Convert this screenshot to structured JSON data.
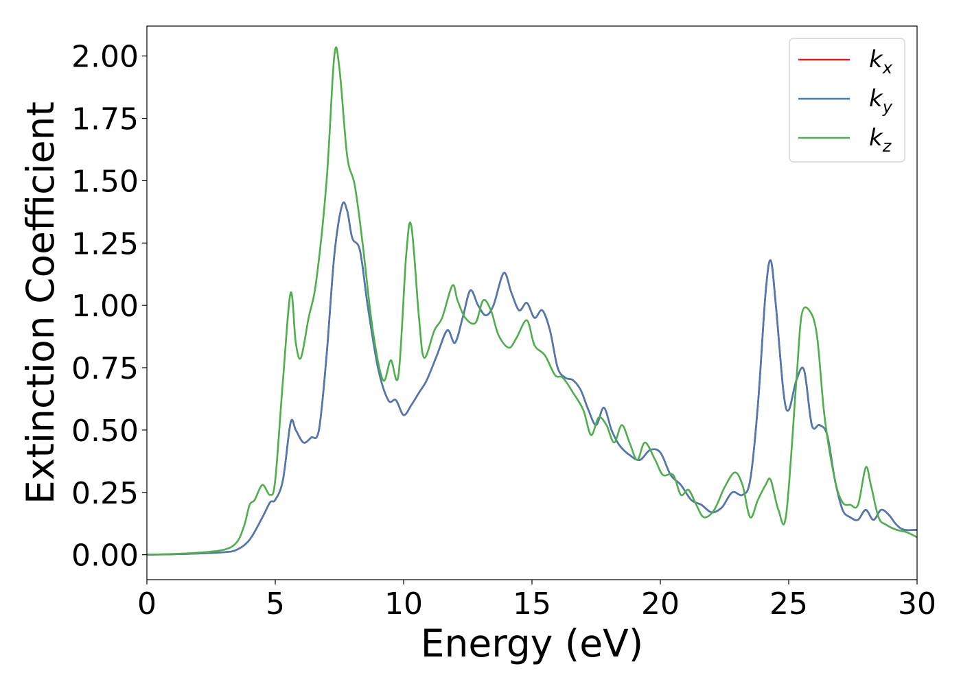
{
  "chart_data": {
    "type": "line",
    "xlabel": "Energy (eV)",
    "ylabel": "Extinction Coefficient",
    "xlim": [
      0,
      30
    ],
    "ylim": [
      -0.1,
      2.12
    ],
    "xticks": [
      "0",
      "5",
      "10",
      "15",
      "20",
      "25",
      "30"
    ],
    "yticks": [
      "0.00",
      "0.25",
      "0.50",
      "0.75",
      "1.00",
      "1.25",
      "1.50",
      "1.75",
      "2.00"
    ],
    "grid": false,
    "legend_position": "top-right",
    "series": [
      {
        "name": "k",
        "subscript": "x",
        "color": "#e41a1c",
        "x": [
          0,
          1,
          2,
          3,
          3.5,
          4,
          4.5,
          4.8,
          5,
          5.3,
          5.6,
          5.8,
          6.1,
          6.4,
          6.7,
          7,
          7.3,
          7.6,
          7.8,
          8,
          8.3,
          8.6,
          9,
          9.4,
          9.7,
          10,
          10.3,
          10.6,
          10.9,
          11.3,
          11.7,
          12,
          12.3,
          12.6,
          12.9,
          13.2,
          13.5,
          13.9,
          14.2,
          14.5,
          14.8,
          15.1,
          15.4,
          15.7,
          16,
          16.3,
          16.6,
          16.9,
          17.2,
          17.5,
          17.8,
          18.1,
          18.4,
          18.8,
          19.2,
          19.6,
          20,
          20.4,
          20.8,
          21.2,
          21.6,
          22,
          22.4,
          22.8,
          23.2,
          23.5,
          23.8,
          24.1,
          24.3,
          24.5,
          24.8,
          25,
          25.3,
          25.6,
          25.9,
          26.2,
          26.5,
          26.8,
          27.1,
          27.4,
          27.7,
          28,
          28.3,
          28.6,
          28.9,
          29.2,
          29.5,
          30
        ],
        "y": [
          0,
          0.002,
          0.005,
          0.01,
          0.02,
          0.06,
          0.15,
          0.21,
          0.22,
          0.3,
          0.53,
          0.5,
          0.45,
          0.47,
          0.5,
          0.8,
          1.2,
          1.4,
          1.38,
          1.27,
          1.22,
          1.0,
          0.75,
          0.62,
          0.62,
          0.56,
          0.6,
          0.65,
          0.7,
          0.8,
          0.9,
          0.85,
          0.95,
          1.06,
          1.0,
          0.96,
          1.0,
          1.13,
          1.05,
          0.98,
          1.01,
          0.95,
          0.98,
          0.9,
          0.75,
          0.71,
          0.7,
          0.66,
          0.58,
          0.52,
          0.59,
          0.5,
          0.44,
          0.4,
          0.38,
          0.42,
          0.41,
          0.32,
          0.28,
          0.22,
          0.2,
          0.17,
          0.19,
          0.25,
          0.24,
          0.3,
          0.6,
          1.05,
          1.18,
          1.0,
          0.65,
          0.58,
          0.7,
          0.74,
          0.52,
          0.52,
          0.48,
          0.3,
          0.18,
          0.15,
          0.14,
          0.18,
          0.14,
          0.18,
          0.16,
          0.12,
          0.1,
          0.1
        ]
      },
      {
        "name": "k",
        "subscript": "y",
        "color": "#4a7ab5",
        "x": [
          0,
          1,
          2,
          3,
          3.5,
          4,
          4.5,
          4.8,
          5,
          5.3,
          5.6,
          5.8,
          6.1,
          6.4,
          6.7,
          7,
          7.3,
          7.6,
          7.8,
          8,
          8.3,
          8.6,
          9,
          9.4,
          9.7,
          10,
          10.3,
          10.6,
          10.9,
          11.3,
          11.7,
          12,
          12.3,
          12.6,
          12.9,
          13.2,
          13.5,
          13.9,
          14.2,
          14.5,
          14.8,
          15.1,
          15.4,
          15.7,
          16,
          16.3,
          16.6,
          16.9,
          17.2,
          17.5,
          17.8,
          18.1,
          18.4,
          18.8,
          19.2,
          19.6,
          20,
          20.4,
          20.8,
          21.2,
          21.6,
          22,
          22.4,
          22.8,
          23.2,
          23.5,
          23.8,
          24.1,
          24.3,
          24.5,
          24.8,
          25,
          25.3,
          25.6,
          25.9,
          26.2,
          26.5,
          26.8,
          27.1,
          27.4,
          27.7,
          28,
          28.3,
          28.6,
          28.9,
          29.2,
          29.5,
          30
        ],
        "y": [
          0,
          0.002,
          0.005,
          0.01,
          0.02,
          0.06,
          0.15,
          0.21,
          0.22,
          0.3,
          0.53,
          0.5,
          0.45,
          0.47,
          0.5,
          0.8,
          1.2,
          1.4,
          1.38,
          1.27,
          1.22,
          1.0,
          0.75,
          0.62,
          0.62,
          0.56,
          0.6,
          0.65,
          0.7,
          0.8,
          0.9,
          0.85,
          0.95,
          1.06,
          1.0,
          0.96,
          1.0,
          1.13,
          1.05,
          0.98,
          1.01,
          0.95,
          0.98,
          0.9,
          0.75,
          0.71,
          0.7,
          0.66,
          0.58,
          0.52,
          0.59,
          0.5,
          0.44,
          0.4,
          0.38,
          0.42,
          0.41,
          0.32,
          0.28,
          0.22,
          0.2,
          0.17,
          0.19,
          0.25,
          0.24,
          0.3,
          0.6,
          1.05,
          1.18,
          1.0,
          0.65,
          0.58,
          0.7,
          0.74,
          0.52,
          0.52,
          0.48,
          0.3,
          0.18,
          0.15,
          0.14,
          0.18,
          0.14,
          0.18,
          0.16,
          0.12,
          0.1,
          0.1
        ]
      },
      {
        "name": "k",
        "subscript": "z",
        "color": "#4daf4a",
        "x": [
          0,
          1,
          2,
          3,
          3.5,
          3.8,
          4,
          4.2,
          4.5,
          4.8,
          5,
          5.3,
          5.6,
          5.8,
          6,
          6.3,
          6.6,
          7,
          7.3,
          7.5,
          7.8,
          8.1,
          8.4,
          8.8,
          9.2,
          9.5,
          9.8,
          10.1,
          10.3,
          10.6,
          10.8,
          11.2,
          11.5,
          11.9,
          12.1,
          12.4,
          12.8,
          13.1,
          13.4,
          13.7,
          14.1,
          14.4,
          14.8,
          15.1,
          15.5,
          15.9,
          16.2,
          16.6,
          17,
          17.3,
          17.6,
          17.9,
          18.2,
          18.5,
          18.8,
          19.1,
          19.4,
          19.8,
          20.1,
          20.5,
          20.8,
          21.1,
          21.4,
          21.7,
          22.1,
          22.5,
          22.9,
          23.2,
          23.5,
          23.8,
          24.1,
          24.3,
          24.6,
          24.9,
          25.3,
          25.5,
          25.8,
          26.1,
          26.4,
          26.8,
          27.1,
          27.4,
          27.7,
          28,
          28.2,
          28.5,
          28.8,
          29.2,
          29.6,
          30
        ],
        "y": [
          0,
          0.003,
          0.008,
          0.02,
          0.05,
          0.12,
          0.2,
          0.22,
          0.28,
          0.24,
          0.3,
          0.7,
          1.05,
          0.85,
          0.79,
          0.95,
          1.1,
          1.5,
          2.0,
          1.95,
          1.6,
          1.48,
          1.25,
          0.9,
          0.7,
          0.78,
          0.72,
          1.2,
          1.32,
          0.95,
          0.79,
          0.9,
          0.95,
          1.08,
          1.02,
          0.95,
          0.93,
          1.02,
          0.98,
          0.88,
          0.83,
          0.87,
          0.94,
          0.84,
          0.8,
          0.72,
          0.71,
          0.65,
          0.58,
          0.48,
          0.55,
          0.52,
          0.45,
          0.52,
          0.45,
          0.38,
          0.45,
          0.38,
          0.32,
          0.32,
          0.24,
          0.26,
          0.2,
          0.15,
          0.18,
          0.27,
          0.33,
          0.28,
          0.15,
          0.22,
          0.28,
          0.3,
          0.18,
          0.16,
          0.7,
          0.96,
          0.98,
          0.88,
          0.55,
          0.3,
          0.21,
          0.2,
          0.2,
          0.35,
          0.28,
          0.15,
          0.12,
          0.1,
          0.09,
          0.07
        ]
      }
    ]
  }
}
